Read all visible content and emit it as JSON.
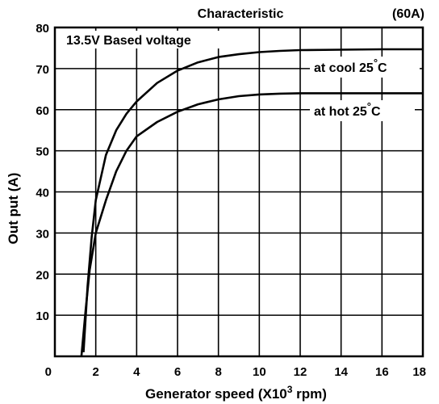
{
  "chart_data": {
    "type": "line",
    "title": "Characteristic",
    "rating": "(60A)",
    "note": "13.5V Based voltage",
    "xlabel_main": "Generator speed (X10",
    "xlabel_sup": "3",
    "xlabel_end": " rpm)",
    "ylabel": "Out put (A)",
    "xlim": [
      0,
      18
    ],
    "ylim": [
      0,
      80
    ],
    "x_ticks": [
      "0",
      "2",
      "4",
      "6",
      "8",
      "10",
      "12",
      "14",
      "16",
      "18"
    ],
    "y_ticks": [
      "10",
      "20",
      "30",
      "40",
      "50",
      "60",
      "70",
      "80"
    ],
    "grid": true,
    "series": [
      {
        "name": "at cool 25°C",
        "label_main": "at cool 25",
        "label_deg": "°",
        "label_unit": "C",
        "x": [
          1.4,
          1.6,
          1.8,
          2.0,
          2.5,
          3.0,
          3.5,
          4.0,
          5.0,
          6.0,
          7.0,
          8.0,
          9.0,
          10.0,
          11.0,
          12.0,
          14.0,
          16.0,
          18.0
        ],
        "y": [
          1,
          17,
          29,
          38,
          49,
          55,
          59,
          62,
          66.5,
          69.5,
          71.5,
          72.8,
          73.5,
          74,
          74.3,
          74.5,
          74.6,
          74.7,
          74.7
        ]
      },
      {
        "name": "at hot 25°C",
        "label_main": "at hot 25",
        "label_deg": "°",
        "label_unit": "C",
        "x": [
          1.3,
          1.5,
          1.7,
          2.0,
          2.5,
          3.0,
          3.5,
          4.0,
          5.0,
          6.0,
          7.0,
          8.0,
          9.0,
          10.0,
          11.0,
          12.0,
          14.0,
          16.0,
          18.0
        ],
        "y": [
          0,
          11,
          21,
          30,
          38,
          45,
          50,
          53.5,
          57,
          59.5,
          61.3,
          62.5,
          63.3,
          63.7,
          63.9,
          64,
          64,
          64,
          64
        ]
      }
    ]
  }
}
